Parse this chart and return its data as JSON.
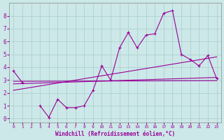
{
  "x": [
    0,
    1,
    2,
    3,
    4,
    5,
    6,
    7,
    8,
    9,
    10,
    11,
    12,
    13,
    14,
    15,
    16,
    17,
    18,
    19,
    20,
    21,
    22,
    23
  ],
  "line1": [
    3.7,
    2.8,
    null,
    1.0,
    0.1,
    1.5,
    0.85,
    0.85,
    1.0,
    2.2,
    4.1,
    3.0,
    5.5,
    6.7,
    5.5,
    6.5,
    6.6,
    8.2,
    8.4,
    5.0,
    4.6,
    4.1,
    4.9,
    3.1
  ],
  "line2_x": [
    0,
    23
  ],
  "line2_y": [
    2.7,
    3.2
  ],
  "line3_x": [
    0,
    23
  ],
  "line3_y": [
    2.2,
    4.8
  ],
  "line4_x": [
    0,
    23
  ],
  "line4_y": [
    2.9,
    2.95
  ],
  "color": "#990099",
  "bg_color": "#cce8e8",
  "grid_color": "#aacccc",
  "xlabel": "Windchill (Refroidissement éolien,°C)",
  "xlim": [
    -0.5,
    23.5
  ],
  "ylim": [
    -0.3,
    9.0
  ],
  "yticks": [
    0,
    1,
    2,
    3,
    4,
    5,
    6,
    7,
    8
  ],
  "xticks": [
    0,
    1,
    2,
    3,
    4,
    5,
    6,
    7,
    8,
    9,
    10,
    11,
    12,
    13,
    14,
    15,
    16,
    17,
    18,
    19,
    20,
    21,
    22,
    23
  ]
}
